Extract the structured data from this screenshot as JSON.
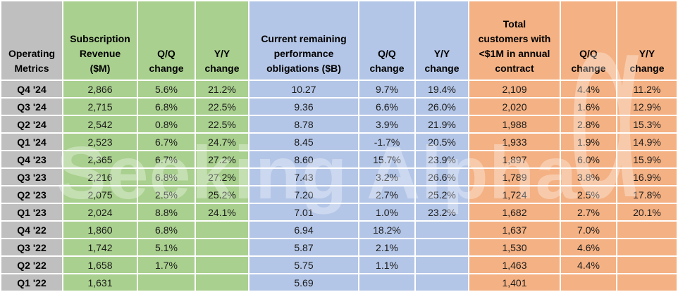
{
  "watermark": {
    "text": "Seeking Alpha",
    "symbol": "α"
  },
  "colors": {
    "label_gray": "#BFBFBF",
    "revenue_green": "#A9D08E",
    "rpo_blue": "#B4C6E7",
    "customers_orange": "#F4B183",
    "grid_white": "#FFFFFF"
  },
  "table": {
    "corner_header": "Operating\nMetrics",
    "columns": [
      {
        "key": "subscription-revenue",
        "group": "green",
        "label": "Subscription\nRevenue\n($M)"
      },
      {
        "key": "subscription-revenue-qq-change",
        "group": "green",
        "label": "Q/Q\nchange"
      },
      {
        "key": "subscription-revenue-yy-change",
        "group": "green",
        "label": "Y/Y\nchange"
      },
      {
        "key": "crpo",
        "group": "blue",
        "label": "Current remaining\nperformance\nobligations ($B)"
      },
      {
        "key": "crpo-qq-change",
        "group": "blue",
        "label": "Q/Q\nchange"
      },
      {
        "key": "crpo-yy-change",
        "group": "blue",
        "label": "Y/Y\nchange"
      },
      {
        "key": "total-customers",
        "group": "orange",
        "label": "Total\ncustomers with\n<$1M in annual\ncontract"
      },
      {
        "key": "customers-qq-change",
        "group": "orange",
        "label": "Q/Q\nchange"
      },
      {
        "key": "customers-yy-change",
        "group": "orange",
        "label": "Y/Y\nchange"
      }
    ],
    "rows": [
      {
        "label": "Q4 '24",
        "values": [
          "2,866",
          "5.6%",
          "21.2%",
          "10.27",
          "9.7%",
          "19.4%",
          "2,109",
          "4.4%",
          "11.2%"
        ]
      },
      {
        "label": "Q3 '24",
        "values": [
          "2,715",
          "6.8%",
          "22.5%",
          "9.36",
          "6.6%",
          "26.0%",
          "2,020",
          "1.6%",
          "12.9%"
        ]
      },
      {
        "label": "Q2 '24",
        "values": [
          "2,542",
          "0.8%",
          "22.5%",
          "8.78",
          "3.9%",
          "21.9%",
          "1,988",
          "2.8%",
          "15.3%"
        ]
      },
      {
        "label": "Q1 '24",
        "values": [
          "2,523",
          "6.7%",
          "24.7%",
          "8.45",
          "-1.7%",
          "20.5%",
          "1,933",
          "1.9%",
          "14.9%"
        ]
      },
      {
        "label": "Q4 '23",
        "values": [
          "2,365",
          "6.7%",
          "27.2%",
          "8.60",
          "15.7%",
          "23.9%",
          "1,897",
          "6.0%",
          "15.9%"
        ]
      },
      {
        "label": "Q3 '23",
        "values": [
          "2,216",
          "6.8%",
          "27.2%",
          "7.43",
          "3.2%",
          "26.6%",
          "1,789",
          "3.8%",
          "16.9%"
        ]
      },
      {
        "label": "Q2 '23",
        "values": [
          "2,075",
          "2.5%",
          "25.2%",
          "7.20",
          "2.7%",
          "25.2%",
          "1,724",
          "2.5%",
          "17.8%"
        ]
      },
      {
        "label": "Q1 '23",
        "values": [
          "2,024",
          "8.8%",
          "24.1%",
          "7.01",
          "1.0%",
          "23.2%",
          "1,682",
          "2.7%",
          "20.1%"
        ]
      },
      {
        "label": "Q4 '22",
        "values": [
          "1,860",
          "6.8%",
          "",
          "6.94",
          "18.2%",
          "",
          "1,637",
          "7.0%",
          ""
        ]
      },
      {
        "label": "Q3 '22",
        "values": [
          "1,742",
          "5.1%",
          "",
          "5.87",
          "2.1%",
          "",
          "1,530",
          "4.6%",
          ""
        ]
      },
      {
        "label": "Q2 '22",
        "values": [
          "1,658",
          "1.7%",
          "",
          "5.75",
          "1.1%",
          "",
          "1,463",
          "4.4%",
          ""
        ]
      },
      {
        "label": "Q1 '22",
        "values": [
          "1,631",
          "",
          "",
          "5.69",
          "",
          "",
          "1,401",
          "",
          ""
        ]
      }
    ]
  },
  "chart_data": {
    "type": "table",
    "title": "Operating Metrics",
    "categories": [
      "Q4 '24",
      "Q3 '24",
      "Q2 '24",
      "Q1 '24",
      "Q4 '23",
      "Q3 '23",
      "Q2 '23",
      "Q1 '23",
      "Q4 '22",
      "Q3 '22",
      "Q2 '22",
      "Q1 '22"
    ],
    "series": [
      {
        "name": "Subscription Revenue ($M)",
        "values": [
          2866,
          2715,
          2542,
          2523,
          2365,
          2216,
          2075,
          2024,
          1860,
          1742,
          1658,
          1631
        ]
      },
      {
        "name": "Subscription Revenue Q/Q change (%)",
        "values": [
          5.6,
          6.8,
          0.8,
          6.7,
          6.7,
          6.8,
          2.5,
          8.8,
          6.8,
          5.1,
          1.7,
          null
        ]
      },
      {
        "name": "Subscription Revenue Y/Y change (%)",
        "values": [
          21.2,
          22.5,
          22.5,
          24.7,
          27.2,
          27.2,
          25.2,
          24.1,
          null,
          null,
          null,
          null
        ]
      },
      {
        "name": "Current remaining performance obligations ($B)",
        "values": [
          10.27,
          9.36,
          8.78,
          8.45,
          8.6,
          7.43,
          7.2,
          7.01,
          6.94,
          5.87,
          5.75,
          5.69
        ]
      },
      {
        "name": "Current remaining performance obligations Q/Q change (%)",
        "values": [
          9.7,
          6.6,
          3.9,
          -1.7,
          15.7,
          3.2,
          2.7,
          1.0,
          18.2,
          2.1,
          1.1,
          null
        ]
      },
      {
        "name": "Current remaining performance obligations Y/Y change (%)",
        "values": [
          19.4,
          26.0,
          21.9,
          20.5,
          23.9,
          26.6,
          25.2,
          23.2,
          null,
          null,
          null,
          null
        ]
      },
      {
        "name": "Total customers with <$1M in annual contract",
        "values": [
          2109,
          2020,
          1988,
          1933,
          1897,
          1789,
          1724,
          1682,
          1637,
          1530,
          1463,
          1401
        ]
      },
      {
        "name": "Total customers Q/Q change (%)",
        "values": [
          4.4,
          1.6,
          2.8,
          1.9,
          6.0,
          3.8,
          2.5,
          2.7,
          7.0,
          4.6,
          4.4,
          null
        ]
      },
      {
        "name": "Total customers Y/Y change (%)",
        "values": [
          11.2,
          12.9,
          15.3,
          14.9,
          15.9,
          16.9,
          17.8,
          20.1,
          null,
          null,
          null,
          null
        ]
      }
    ]
  }
}
